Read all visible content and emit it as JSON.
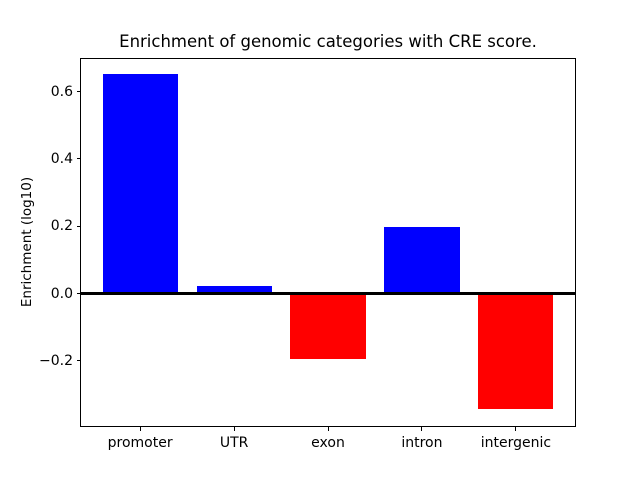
{
  "chart_data": {
    "type": "bar",
    "title": "Enrichment of genomic categories with CRE score.",
    "xlabel": "",
    "ylabel": "Enrichment (log10)",
    "categories": [
      "promoter",
      "UTR",
      "exon",
      "intron",
      "intergenic"
    ],
    "values": [
      0.652,
      0.023,
      -0.194,
      0.197,
      -0.343
    ],
    "bar_colors": [
      "#0000ff",
      "#0000ff",
      "#ff0000",
      "#0000ff",
      "#ff0000"
    ],
    "color_semantics": {
      "positive": "#0000ff",
      "negative": "#ff0000"
    },
    "ylim": [
      -0.397,
      0.7
    ],
    "yticks": [
      0.6,
      0.4,
      0.2,
      0.0,
      -0.2
    ],
    "ytick_labels": [
      "0.6",
      "0.4",
      "0.2",
      "0.0",
      "−0.2"
    ],
    "baseline": 0,
    "baseline_color": "#000000",
    "grid": false,
    "legend_position": "none",
    "axis_color": "#000000",
    "background": "#ffffff"
  }
}
